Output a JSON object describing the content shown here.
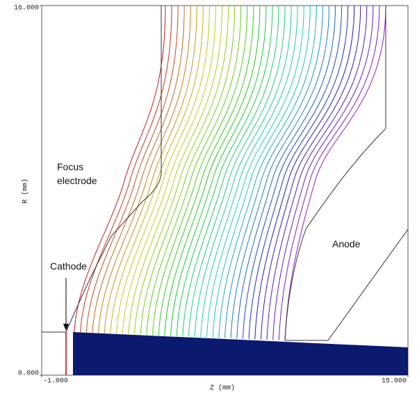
{
  "chart_data": {
    "type": "field-plot",
    "x_label": "Z (mm)",
    "y_label": "R (mm)",
    "xlim": [
      -1,
      15
    ],
    "ylim": [
      0,
      16
    ],
    "xticks": [
      {
        "value": -1,
        "label": "-1.000"
      },
      {
        "value": 15,
        "label": "15.000"
      }
    ],
    "yticks": [
      {
        "value": 0,
        "label": "0.000"
      },
      {
        "value": 16,
        "label": "16.000"
      }
    ],
    "annotations": [
      "Focus electrode",
      "Cathode",
      "Anode"
    ]
  }
}
